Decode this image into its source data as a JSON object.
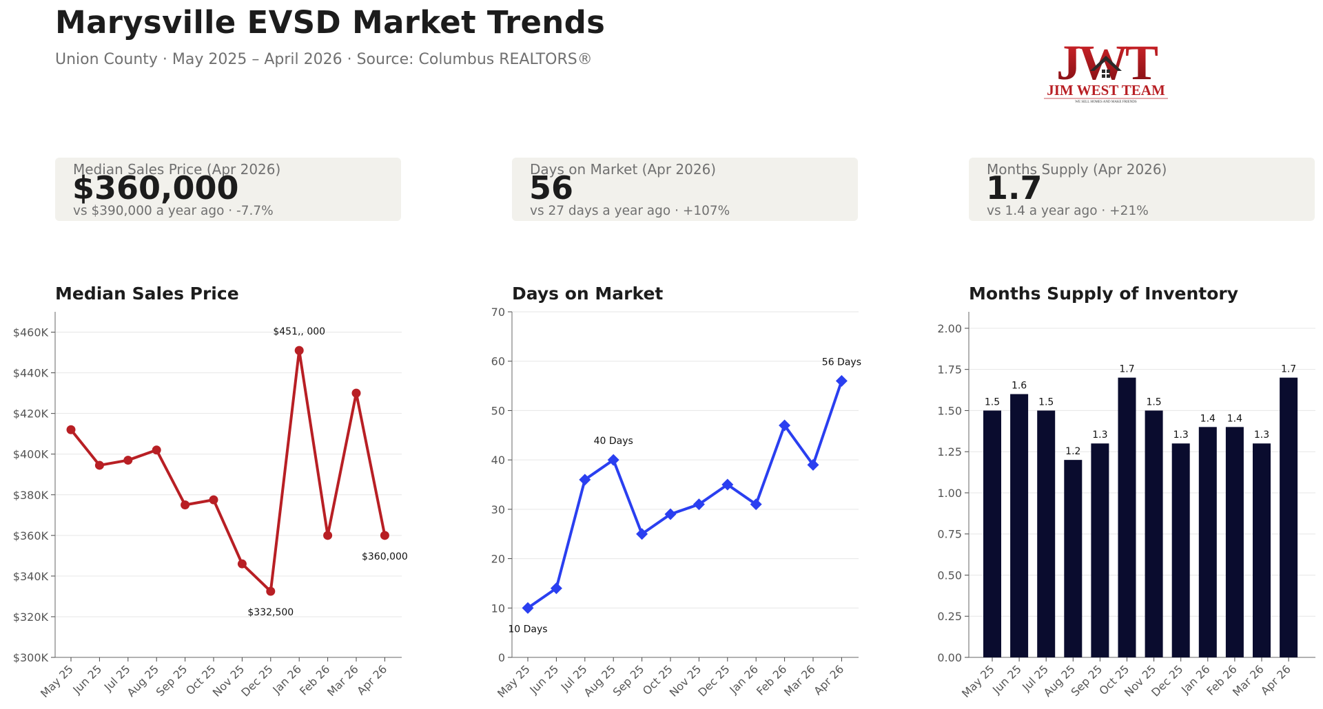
{
  "header": {
    "title": "Marysville EVSD Market Trends",
    "subtitle": "Union County  ·  May 2025 – April 2026  ·  Source: Columbus REALTORS®",
    "logo": {
      "monogram": "JWT",
      "name": "JIM WEST TEAM",
      "tagline": "WE SELL HOMES AND MAKE FRIENDS"
    }
  },
  "kpis": [
    {
      "label": "Median Sales Price (Apr 2026)",
      "value": "$360,000",
      "comparison": "vs $390,000 a year ago  ·  -7.7%"
    },
    {
      "label": "Days on Market (Apr 2026)",
      "value": "56",
      "comparison": "vs 27 days a year ago  ·  +107%"
    },
    {
      "label": "Months Supply (Apr 2026)",
      "value": "1.7",
      "comparison": "vs 1.4 a year ago  ·  +21%"
    }
  ],
  "colors": {
    "price_line": "#b81f24",
    "dom_line": "#2a3ff0",
    "supply_bar": "#0a0c2e",
    "kpi_bg": "#f2f1ec",
    "grid": "#e6e6e6"
  },
  "chart_data": [
    {
      "type": "line",
      "title": "Median Sales Price",
      "categories": [
        "May 25",
        "Jun 25",
        "Jul 25",
        "Aug 25",
        "Sep 25",
        "Oct 25",
        "Nov 25",
        "Dec 25",
        "Jan 26",
        "Feb 26",
        "Mar 26",
        "Apr 26"
      ],
      "values": [
        412000,
        394500,
        397000,
        402000,
        375000,
        377500,
        346000,
        332500,
        451000,
        360000,
        430000,
        360000
      ],
      "ylim": [
        300000,
        470000
      ],
      "yticks": [
        300000,
        320000,
        340000,
        360000,
        380000,
        400000,
        420000,
        440000,
        460000
      ],
      "ytick_labels": [
        "$300K",
        "$320K",
        "$340K",
        "$360K",
        "$380K",
        "$400K",
        "$420K",
        "$440K",
        "$460K"
      ],
      "marker": "circle",
      "annotations": [
        {
          "index": 8,
          "text": "$451,, 000",
          "position": "above"
        },
        {
          "index": 7,
          "text": "$332,500",
          "position": "below"
        },
        {
          "index": 11,
          "text": "$360,000",
          "position": "below"
        }
      ],
      "grid": true
    },
    {
      "type": "line",
      "title": "Days on Market",
      "categories": [
        "May 25",
        "Jun 25",
        "Jul 25",
        "Aug 25",
        "Sep 25",
        "Oct 25",
        "Nov 25",
        "Dec 25",
        "Jan 26",
        "Feb 26",
        "Mar 26",
        "Apr 26"
      ],
      "values": [
        10,
        14,
        36,
        40,
        25,
        29,
        31,
        35,
        31,
        47,
        39,
        56
      ],
      "ylim": [
        0,
        70
      ],
      "yticks": [
        0,
        10,
        20,
        30,
        40,
        50,
        60,
        70
      ],
      "ytick_labels": [
        "0",
        "10",
        "20",
        "30",
        "40",
        "50",
        "60",
        "70"
      ],
      "marker": "diamond",
      "annotations": [
        {
          "index": 0,
          "text": "10 Days",
          "position": "below"
        },
        {
          "index": 3,
          "text": "40 Days",
          "position": "above"
        },
        {
          "index": 11,
          "text": "56 Days",
          "position": "above"
        }
      ],
      "grid": true
    },
    {
      "type": "bar",
      "title": "Months Supply of Inventory",
      "categories": [
        "May 25",
        "Jun 25",
        "Jul 25",
        "Aug 25",
        "Sep 25",
        "Oct 25",
        "Nov 25",
        "Dec 25",
        "Jan 26",
        "Feb 26",
        "Mar 26",
        "Apr 26"
      ],
      "values": [
        1.5,
        1.6,
        1.5,
        1.2,
        1.3,
        1.7,
        1.5,
        1.3,
        1.4,
        1.4,
        1.3,
        1.7
      ],
      "value_labels": [
        "1.5",
        "1.6",
        "1.5",
        "1.2",
        "1.3",
        "1.7",
        "1.5",
        "1.3",
        "1.4",
        "1.4",
        "1.3",
        "1.7"
      ],
      "ylim": [
        0,
        2.1
      ],
      "yticks": [
        0,
        0.25,
        0.5,
        0.75,
        1.0,
        1.25,
        1.5,
        1.75,
        2.0
      ],
      "ytick_labels": [
        "0.00",
        "0.25",
        "0.50",
        "0.75",
        "1.00",
        "1.25",
        "1.50",
        "1.75",
        "2.00"
      ],
      "grid": true
    }
  ]
}
